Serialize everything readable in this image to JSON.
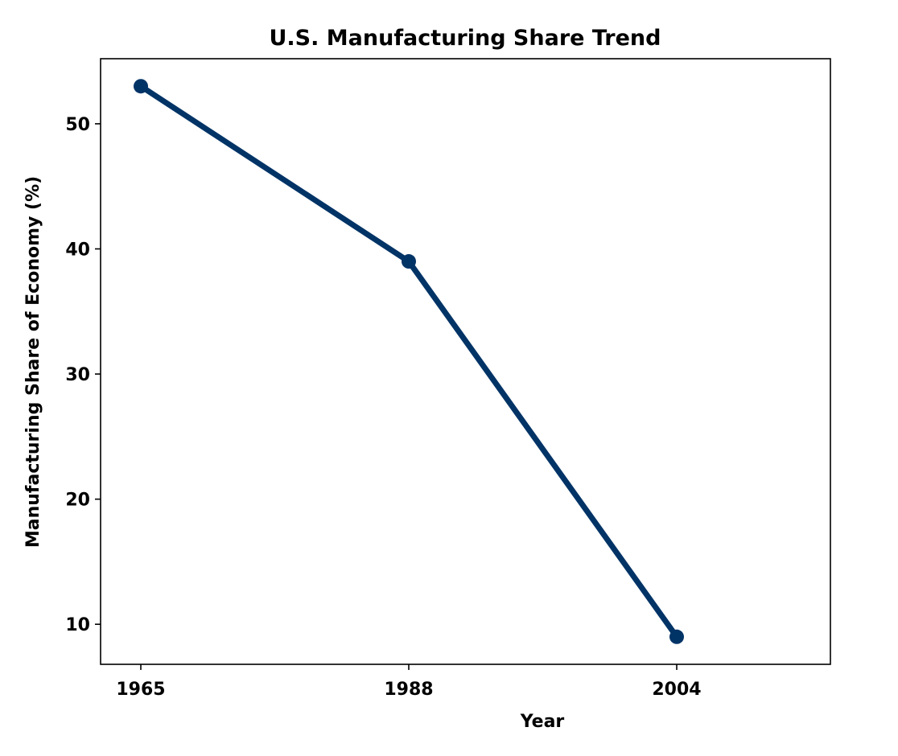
{
  "chart_data": {
    "type": "line",
    "title": "U.S. Manufacturing Share Trend",
    "xlabel": "Year",
    "ylabel": "Manufacturing Share of Economy (%)",
    "categories": [
      "1965",
      "1988",
      "2004"
    ],
    "series": [
      {
        "values": [
          53,
          39,
          9
        ],
        "color": "#003366",
        "marker": "circle"
      }
    ],
    "ylim": [
      6.8,
      55.2
    ],
    "yticks": [
      10,
      20,
      30,
      40,
      50
    ],
    "grid": false
  }
}
